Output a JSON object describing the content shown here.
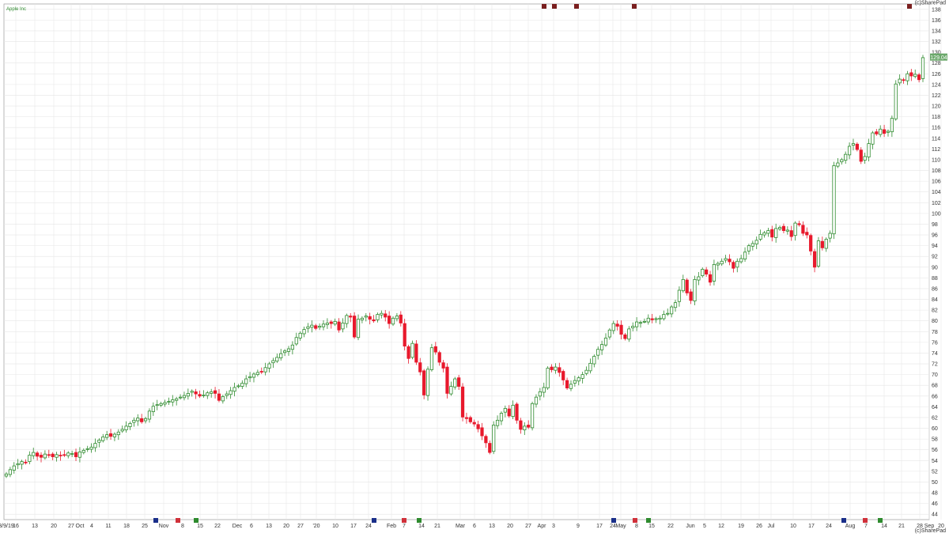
{
  "header": {
    "symbol": "Apple Inc",
    "copyright_top": "(c)SharePad",
    "copyright_bottom": "(c)SharePad"
  },
  "price_tag": {
    "value": "129.04",
    "y": 129.04,
    "color": "#6aa86a"
  },
  "colors": {
    "up_fill": "#ffffff",
    "up_stroke": "#2e8b2e",
    "down": "#e8192c",
    "grid": "#e6e6e6",
    "frame": "#999999"
  },
  "chart_data": {
    "type": "candlestick",
    "ylim": [
      43,
      139
    ],
    "y_ticks": [
      44,
      46,
      48,
      50,
      52,
      54,
      56,
      58,
      60,
      62,
      64,
      66,
      68,
      70,
      72,
      74,
      76,
      78,
      80,
      82,
      84,
      86,
      88,
      90,
      92,
      94,
      96,
      98,
      100,
      102,
      104,
      106,
      108,
      110,
      112,
      114,
      116,
      118,
      120,
      122,
      124,
      126,
      128,
      130,
      132,
      134,
      136,
      138
    ],
    "x_labels": [
      "3/9/19",
      "16",
      "13",
      "20",
      "27",
      "Oct",
      "4",
      "11",
      "18",
      "25",
      "Nov",
      "8",
      "15",
      "22",
      "Dec",
      "6",
      "13",
      "20",
      "27",
      "'20",
      "10",
      "17",
      "24",
      "Feb",
      "7",
      "14",
      "21",
      "Mar",
      "6",
      "13",
      "20",
      "27",
      "Apr",
      "3",
      "9",
      "17",
      "24",
      "May",
      "8",
      "15",
      "22",
      "Jun",
      "5",
      "12",
      "19",
      "26",
      "Jul",
      "10",
      "17",
      "24",
      "Aug",
      "7",
      "14",
      "21",
      "28",
      "Sep",
      "20"
    ],
    "closes": [
      51.5,
      52.3,
      53.0,
      53.4,
      53.8,
      53.6,
      55.0,
      55.5,
      54.8,
      54.6,
      55.2,
      55.0,
      54.7,
      55.1,
      54.9,
      55.0,
      55.4,
      55.3,
      54.7,
      55.6,
      55.9,
      56.2,
      56.5,
      57.2,
      57.8,
      58.4,
      58.8,
      58.5,
      58.9,
      59.3,
      59.8,
      60.4,
      60.9,
      61.5,
      61.9,
      61.2,
      61.8,
      63.2,
      64.1,
      64.4,
      64.6,
      64.8,
      65.0,
      65.3,
      65.5,
      65.8,
      66.1,
      66.5,
      66.9,
      66.4,
      66.0,
      66.2,
      66.6,
      66.8,
      66.5,
      65.2,
      65.9,
      66.4,
      67.0,
      67.6,
      67.9,
      68.4,
      69.2,
      69.6,
      70.1,
      70.4,
      70.6,
      71.3,
      72.0,
      72.6,
      73.2,
      73.9,
      74.4,
      74.8,
      75.5,
      76.9,
      77.7,
      78.4,
      78.9,
      79.2,
      78.6,
      79.0,
      79.4,
      79.6,
      79.5,
      79.9,
      78.3,
      79.6,
      81.0,
      80.7,
      77.0,
      80.3,
      80.5,
      80.9,
      80.3,
      80.0,
      81.2,
      81.4,
      80.7,
      79.5,
      80.5,
      80.9,
      79.6,
      75.3,
      73.0,
      75.8,
      72.3,
      70.5,
      66.2,
      71.0,
      75.0,
      74.2,
      72.3,
      71.2,
      66.5,
      67.8,
      69.2,
      67.8,
      62.1,
      61.8,
      61.2,
      60.8,
      59.9,
      58.6,
      57.3,
      55.5,
      60.6,
      61.5,
      62.8,
      63.7,
      62.3,
      64.3,
      61.5,
      59.8,
      60.4,
      60.2,
      64.6,
      65.8,
      66.8,
      67.6,
      71.2,
      70.9,
      71.4,
      70.4,
      69.0,
      67.5,
      68.2,
      68.9,
      69.4,
      70.0,
      70.8,
      72.1,
      73.4,
      74.7,
      75.6,
      76.8,
      78.3,
      79.5,
      79.0,
      77.5,
      76.7,
      78.5,
      79.0,
      79.8,
      79.7,
      79.9,
      80.5,
      80.2,
      80.4,
      80.5,
      81.2,
      81.4,
      82.6,
      83.4,
      85.7,
      87.7,
      85.2,
      83.8,
      87.7,
      88.2,
      89.6,
      88.7,
      87.2,
      90.5,
      90.7,
      91.1,
      91.6,
      91.0,
      89.8,
      91.1,
      91.6,
      92.8,
      94.0,
      94.4,
      95.0,
      96.1,
      96.4,
      96.8,
      95.6,
      97.2,
      97.4,
      96.8,
      96.9,
      95.7,
      98.2,
      97.9,
      96.3,
      96.0,
      93.0,
      90.0,
      94.9,
      93.6,
      95.2,
      96.3,
      108.9,
      109.4,
      110.0,
      111.0,
      112.5,
      113.0,
      111.9,
      109.7,
      110.6,
      113.0,
      115.0,
      114.8,
      115.7,
      114.9,
      115.3,
      117.7,
      124.1,
      125.0,
      124.8,
      126.0,
      125.6,
      125.9,
      124.9,
      129.0
    ]
  }
}
